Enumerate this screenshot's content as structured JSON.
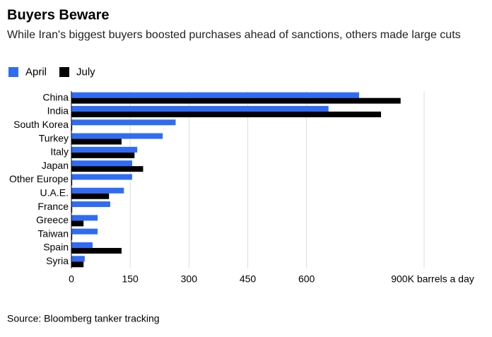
{
  "chart_data": {
    "type": "bar",
    "orientation": "horizontal",
    "title": "Buyers Beware",
    "subtitle": "While Iran's biggest buyers boosted purchases ahead of sanctions, others made large cuts",
    "source": "Source: Bloomberg tanker tracking",
    "categories": [
      "China",
      "India",
      "South Korea",
      "Turkey",
      "Italy",
      "Japan",
      "Other Europe",
      "U.A.E.",
      "France",
      "Greece",
      "Taiwan",
      "Spain",
      "Syria"
    ],
    "series": [
      {
        "name": "April",
        "color": "#2f6cf5",
        "values": [
          734,
          656,
          266,
          233,
          168,
          155,
          155,
          134,
          99,
          67,
          67,
          54,
          34
        ]
      },
      {
        "name": "July",
        "color": "#000000",
        "values": [
          840,
          790,
          2,
          128,
          161,
          183,
          2,
          96,
          2,
          31,
          2,
          128,
          31
        ]
      }
    ],
    "xlim": [
      0,
      900
    ],
    "xticks": [
      0,
      150,
      300,
      450,
      600,
      {
        "value": 900,
        "label": "900K barrels a day"
      }
    ],
    "grid": true
  }
}
